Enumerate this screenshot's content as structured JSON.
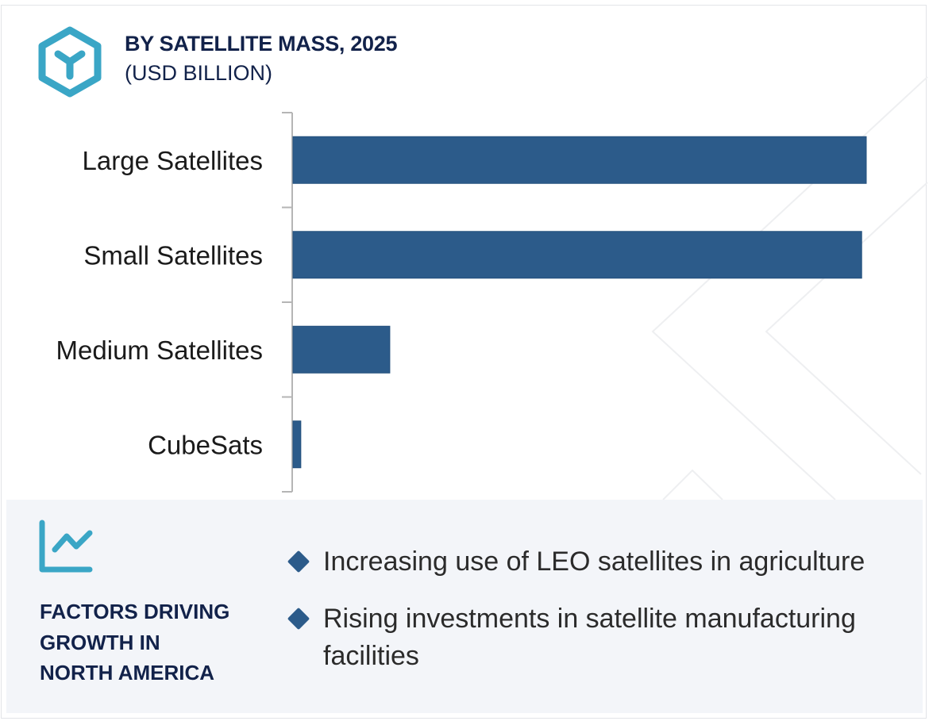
{
  "header": {
    "title": "BY SATELLITE MASS, 2025",
    "subtitle": "(USD BILLION)",
    "icon": "hexagon-cube-icon"
  },
  "colors": {
    "bar": "#2c5b8a",
    "accent_icon": "#3aa6c6",
    "title": "#12224a",
    "panel_bg": "#f3f5f9"
  },
  "chart_data": {
    "type": "bar",
    "orientation": "horizontal",
    "title": "BY SATELLITE MASS, 2025",
    "subtitle": "(USD BILLION)",
    "categories": [
      "Large Satellites",
      "Small Satellites",
      "Medium Satellites",
      "CubeSats"
    ],
    "values": [
      100,
      99.2,
      17.0,
      1.5
    ],
    "value_note": "relative bar lengths (no numeric axis shown; Large Satellites = 100)",
    "xlabel": "",
    "ylabel": "",
    "xlim": [
      0,
      100
    ],
    "grid": false,
    "legend": "none"
  },
  "panel": {
    "icon": "trend-chart-icon",
    "title_lines": [
      "FACTORS DRIVING",
      "GROWTH IN",
      "NORTH AMERICA"
    ],
    "factors": [
      "Increasing use of LEO satellites in agriculture",
      "Rising investments in satellite manufacturing facilities"
    ]
  }
}
